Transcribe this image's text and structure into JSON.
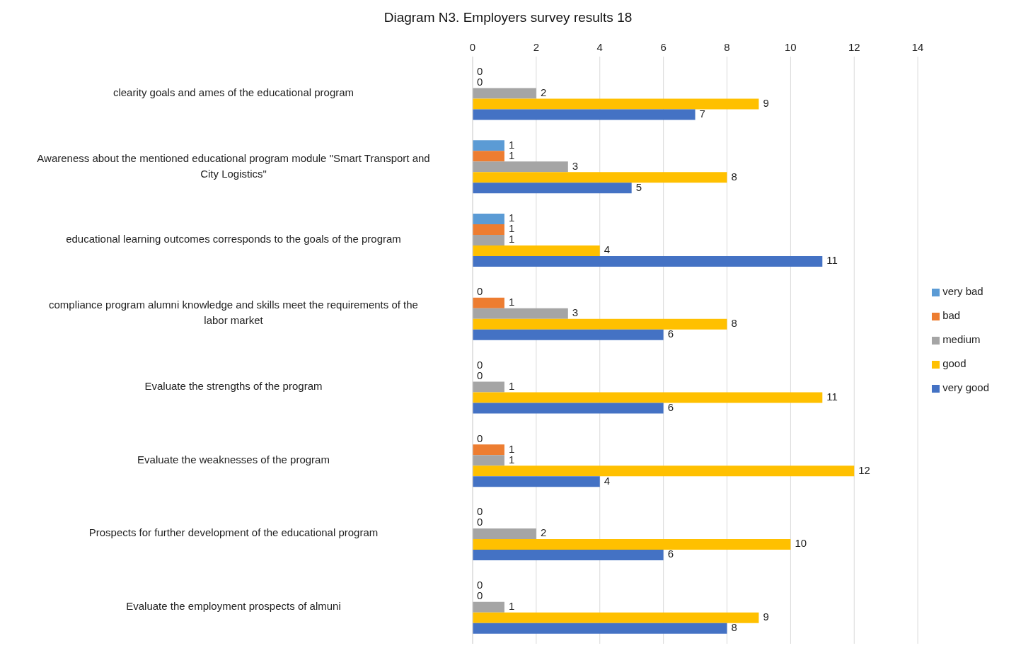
{
  "chart_data": {
    "type": "bar",
    "orientation": "horizontal",
    "title": "Diagram N3. Employers survey results 18",
    "categories": [
      "clearity goals and ames of the educational program",
      "Awareness about the mentioned educational program module \"Smart Transport and City Logistics\"",
      "educational learning outcomes corresponds to the goals of the program",
      "compliance program alumni knowledge and skills meet the requirements of the labor market",
      "Evaluate the strengths of the program",
      "Evaluate the weaknesses of the program",
      "Prospects for further development of the educational program",
      "Evaluate the employment prospects of almuni"
    ],
    "series": [
      {
        "name": "very bad",
        "color": "#5b9bd5",
        "values": [
          0,
          1,
          1,
          0,
          0,
          0,
          0,
          0
        ]
      },
      {
        "name": "bad",
        "color": "#ed7d31",
        "values": [
          0,
          1,
          1,
          1,
          0,
          1,
          0,
          0
        ]
      },
      {
        "name": "medium",
        "color": "#a5a5a5",
        "values": [
          2,
          3,
          1,
          3,
          1,
          1,
          2,
          1
        ]
      },
      {
        "name": "good",
        "color": "#ffc000",
        "values": [
          9,
          8,
          4,
          8,
          11,
          12,
          10,
          9
        ]
      },
      {
        "name": "very good",
        "color": "#4472c4",
        "values": [
          7,
          5,
          11,
          6,
          6,
          4,
          6,
          8
        ]
      }
    ],
    "xlim": [
      0,
      14
    ],
    "xticks": [
      0,
      2,
      4,
      6,
      8,
      10,
      12,
      14
    ],
    "grid": "x",
    "legend": "right",
    "data_labels": true
  }
}
